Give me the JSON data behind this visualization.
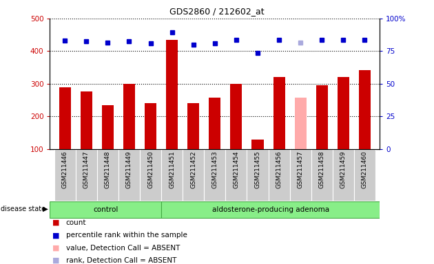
{
  "title": "GDS2860 / 212602_at",
  "samples": [
    "GSM211446",
    "GSM211447",
    "GSM211448",
    "GSM211449",
    "GSM211450",
    "GSM211451",
    "GSM211452",
    "GSM211453",
    "GSM211454",
    "GSM211455",
    "GSM211456",
    "GSM211457",
    "GSM211458",
    "GSM211459",
    "GSM211460"
  ],
  "bar_values": [
    290,
    277,
    235,
    300,
    240,
    435,
    240,
    258,
    300,
    130,
    320,
    258,
    295,
    320,
    342
  ],
  "rank_values": [
    433,
    431,
    426,
    431,
    424,
    458,
    420,
    424,
    434,
    394,
    434,
    427,
    434,
    434,
    434
  ],
  "bar_colors": [
    "#cc0000",
    "#cc0000",
    "#cc0000",
    "#cc0000",
    "#cc0000",
    "#cc0000",
    "#cc0000",
    "#cc0000",
    "#cc0000",
    "#cc0000",
    "#cc0000",
    "#ffaaaa",
    "#cc0000",
    "#cc0000",
    "#cc0000"
  ],
  "rank_colors": [
    "#0000cc",
    "#0000cc",
    "#0000cc",
    "#0000cc",
    "#0000cc",
    "#0000cc",
    "#0000cc",
    "#0000cc",
    "#0000cc",
    "#0000cc",
    "#0000cc",
    "#aaaadd",
    "#0000cc",
    "#0000cc",
    "#0000cc"
  ],
  "ylim_left": [
    100,
    500
  ],
  "ylim_right": [
    0,
    100
  ],
  "yticks_left": [
    100,
    200,
    300,
    400,
    500
  ],
  "yticks_right": [
    0,
    25,
    50,
    75,
    100
  ],
  "ylabel_left_color": "#cc0000",
  "ylabel_right_color": "#0000cc",
  "legend_items": [
    {
      "label": "count",
      "color": "#cc0000"
    },
    {
      "label": "percentile rank within the sample",
      "color": "#0000cc"
    },
    {
      "label": "value, Detection Call = ABSENT",
      "color": "#ffaaaa"
    },
    {
      "label": "rank, Detection Call = ABSENT",
      "color": "#aaaadd"
    }
  ],
  "control_count": 5,
  "title_fontsize": 9
}
